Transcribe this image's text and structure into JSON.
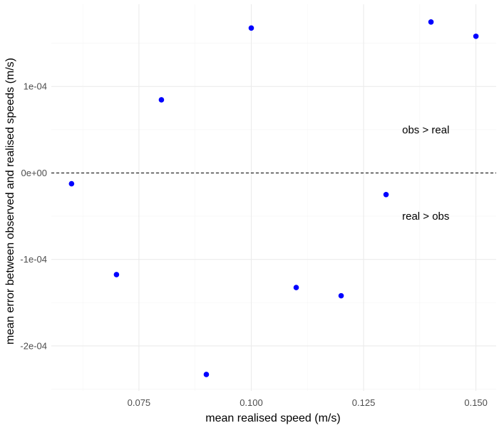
{
  "chart_data": {
    "type": "scatter",
    "title": "",
    "xlabel": "mean realised speed (m/s)",
    "ylabel": "mean error between observed and realised speeds (m/s)",
    "xlim": [
      0.0555,
      0.1545
    ],
    "ylim": [
      -0.000252,
      0.000195
    ],
    "x_ticks": [
      0.075,
      0.1,
      0.125,
      0.15
    ],
    "x_tick_labels": [
      "0.075",
      "0.100",
      "0.125",
      "0.150"
    ],
    "y_ticks": [
      -0.0002,
      -0.0001,
      0.0,
      0.0001
    ],
    "y_tick_labels": [
      "-2e-04",
      "-1e-04",
      "0e+00",
      "1e-04"
    ],
    "grid": true,
    "point_color": "#0000ff",
    "reference_line": {
      "y": 0,
      "style": "dashed",
      "color": "#000000"
    },
    "series": [
      {
        "x": [
          0.06,
          0.07,
          0.08,
          0.09,
          0.1,
          0.11,
          0.12,
          0.13,
          0.14,
          0.15
        ],
        "y": [
          -1.25e-05,
          -0.0001175,
          8.45e-05,
          -0.000233,
          0.0001675,
          -0.0001325,
          -0.000142,
          -2.5e-05,
          0.0001745,
          0.000158
        ]
      }
    ],
    "annotations": [
      {
        "text": "obs > real",
        "x": 0.1455,
        "y": 5e-05
      },
      {
        "text": "real > obs",
        "x": 0.1455,
        "y": -5e-05
      }
    ]
  }
}
